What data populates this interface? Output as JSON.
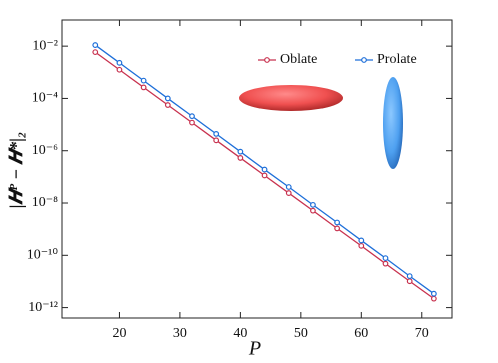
{
  "chart_data": {
    "type": "line",
    "x_label": "P",
    "y_label": "|𝑯ᴾ − 𝑯*|₂",
    "x": [
      16,
      20,
      24,
      28,
      32,
      36,
      40,
      44,
      48,
      52,
      56,
      60,
      64,
      68,
      72
    ],
    "series": [
      {
        "name": "Oblate",
        "color": "#c8324f",
        "values": [
          0.0059,
          0.00125,
          0.000264,
          5.6e-05,
          1.19e-05,
          2.5e-06,
          5.3e-07,
          1.13e-07,
          2.4e-08,
          5.1e-09,
          1.07e-09,
          2.3e-10,
          4.8e-11,
          1.02e-11,
          2.2e-12
        ]
      },
      {
        "name": "Prolate",
        "color": "#1e6fd9",
        "values": [
          0.011,
          0.0023,
          0.00048,
          0.0001,
          2.1e-05,
          4.4e-06,
          9.2e-07,
          1.9e-07,
          4.1e-08,
          8.5e-09,
          1.8e-09,
          3.7e-10,
          7.8e-11,
          1.6e-11,
          3.4e-12
        ]
      }
    ],
    "xlim": [
      10.5,
      75
    ],
    "xticks": [
      20,
      30,
      40,
      50,
      60,
      70
    ],
    "ylim": [
      4e-13,
      0.1
    ],
    "yticks": [
      {
        "value": 0.01,
        "label": "10⁻²"
      },
      {
        "value": 0.0001,
        "label": "10⁻⁴"
      },
      {
        "value": 1e-06,
        "label": "10⁻⁶"
      },
      {
        "value": 1e-08,
        "label": "10⁻⁸"
      },
      {
        "value": 1e-10,
        "label": "10⁻¹⁰"
      },
      {
        "value": 1e-12,
        "label": "10⁻¹²"
      }
    ],
    "y_scale": "log",
    "grid": false,
    "legend_position": "top-right"
  }
}
